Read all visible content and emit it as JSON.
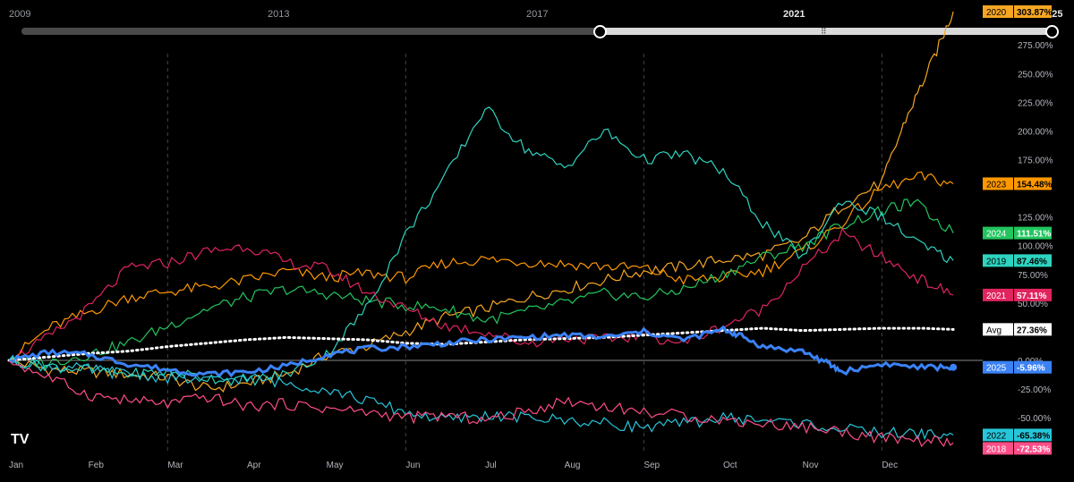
{
  "timeline": {
    "years": [
      "2009",
      "2013",
      "2017",
      "2021",
      "2025"
    ],
    "active_year": "2021",
    "range_start": "2021",
    "range_end": "2025",
    "grip_icon": "grip-dots"
  },
  "chart_data": {
    "type": "line",
    "x_unit": "month",
    "x_tick_labels": [
      "Jan",
      "Feb",
      "Mar",
      "Apr",
      "May",
      "Jun",
      "Jul",
      "Aug",
      "Sep",
      "Oct",
      "Nov",
      "Dec"
    ],
    "y_tick_labels": [
      "275.00%",
      "250.00%",
      "225.00%",
      "200.00%",
      "175.00%",
      "125.00%",
      "100.00%",
      "75.00%",
      "50.00%",
      "0.00%",
      "-25.00%",
      "-50.00%"
    ],
    "ylim": [
      -85,
      320
    ],
    "grid": "vertical quarter lines",
    "series": [
      {
        "name": "2020",
        "color": "#f5a623",
        "label": "303.87%",
        "x": [
          0,
          0.5,
          1,
          1.5,
          2,
          2.5,
          3,
          3.5,
          4,
          4.5,
          5,
          5.5,
          6,
          6.5,
          7,
          7.5,
          8,
          8.5,
          9,
          9.5,
          10,
          10.5,
          11,
          11.3,
          11.6,
          11.9
        ],
        "y": [
          0,
          -8,
          -10,
          -12,
          -15,
          -25,
          -20,
          -12,
          5,
          12,
          25,
          38,
          45,
          55,
          62,
          70,
          78,
          82,
          88,
          92,
          105,
          135,
          155,
          210,
          255,
          304
        ]
      },
      {
        "name": "2023",
        "color": "#ff9800",
        "label": "154.48%",
        "x": [
          0,
          0.5,
          1,
          1.5,
          2,
          2.5,
          3,
          3.5,
          4,
          4.5,
          5,
          5.5,
          6,
          6.5,
          7,
          7.5,
          8,
          8.5,
          9,
          9.5,
          10,
          10.5,
          11,
          11.5,
          11.9
        ],
        "y": [
          0,
          28,
          42,
          55,
          60,
          64,
          70,
          78,
          72,
          76,
          72,
          85,
          88,
          86,
          84,
          82,
          80,
          70,
          72,
          78,
          95,
          120,
          150,
          160,
          154
        ]
      },
      {
        "name": "2024",
        "color": "#22c55e",
        "label": "111.51%",
        "x": [
          0,
          0.5,
          1,
          1.5,
          2,
          2.5,
          3,
          3.5,
          4,
          4.5,
          5,
          5.5,
          6,
          6.5,
          7,
          7.5,
          8,
          8.5,
          9,
          9.5,
          10,
          10.5,
          11,
          11.4,
          11.9
        ],
        "y": [
          0,
          -2,
          5,
          15,
          30,
          45,
          55,
          62,
          58,
          52,
          48,
          45,
          35,
          42,
          50,
          58,
          55,
          62,
          75,
          90,
          100,
          118,
          130,
          138,
          111
        ]
      },
      {
        "name": "2019",
        "color": "#2dd4bf",
        "label": "87.46%",
        "x": [
          0,
          0.5,
          1,
          1.5,
          2,
          2.5,
          3,
          3.5,
          4,
          4.5,
          5,
          5.5,
          6,
          6.5,
          7,
          7.5,
          8,
          8.5,
          9,
          9.5,
          10,
          10.5,
          11,
          11.5,
          11.9
        ],
        "y": [
          0,
          -5,
          -8,
          -12,
          -10,
          -15,
          -18,
          -12,
          5,
          45,
          110,
          160,
          220,
          185,
          168,
          200,
          175,
          180,
          165,
          120,
          90,
          140,
          125,
          100,
          87
        ]
      },
      {
        "name": "2021",
        "color": "#e0245e",
        "label": "57.11%",
        "x": [
          0,
          0.5,
          1,
          1.5,
          2,
          2.5,
          3,
          3.5,
          4,
          4.5,
          5,
          5.5,
          6,
          6.5,
          7,
          7.5,
          8,
          8.5,
          9,
          9.5,
          10,
          10.5,
          11,
          11.5,
          11.9
        ],
        "y": [
          0,
          20,
          45,
          80,
          85,
          95,
          100,
          85,
          80,
          60,
          45,
          30,
          25,
          15,
          20,
          18,
          22,
          15,
          30,
          45,
          80,
          110,
          90,
          70,
          57
        ]
      },
      {
        "name": "Avg",
        "color": "#ffffff",
        "label": "27.36%",
        "dotted": true,
        "x": [
          0,
          0.5,
          1,
          1.5,
          2,
          2.5,
          3,
          3.5,
          4,
          4.5,
          5,
          5.5,
          6,
          6.5,
          7,
          7.5,
          8,
          8.5,
          9,
          9.5,
          10,
          10.5,
          11,
          11.5,
          11.9
        ],
        "y": [
          0,
          3,
          6,
          8,
          12,
          15,
          18,
          20,
          19,
          18,
          15,
          14,
          16,
          18,
          19,
          20,
          22,
          24,
          26,
          28,
          26,
          27,
          28,
          28,
          27
        ]
      },
      {
        "name": "2025",
        "color": "#3b82f6",
        "label": "-5.96%",
        "thick": true,
        "x": [
          0,
          0.5,
          1,
          1.5,
          2,
          2.5,
          3,
          3.5,
          4,
          4.5,
          5,
          5.5,
          6,
          6.5,
          7,
          7.5,
          8,
          8.5,
          9,
          9.2,
          9.5,
          10,
          10.3,
          10.5,
          11,
          11.5,
          11.9
        ],
        "y": [
          0,
          7,
          5,
          -3,
          -8,
          -12,
          -10,
          -5,
          5,
          10,
          12,
          15,
          18,
          20,
          22,
          20,
          25,
          18,
          27,
          22,
          12,
          8,
          -2,
          -10,
          -3,
          -6,
          -6
        ]
      },
      {
        "name": "2022",
        "color": "#26c6da",
        "label": "-65.38%",
        "x": [
          0,
          0.5,
          1,
          1.5,
          2,
          2.5,
          3,
          3.5,
          4,
          4.5,
          5,
          5.5,
          6,
          6.5,
          7,
          7.5,
          8,
          8.5,
          9,
          9.5,
          10,
          10.5,
          11,
          11.5,
          11.9
        ],
        "y": [
          0,
          -5,
          -8,
          -12,
          -15,
          -18,
          -15,
          -20,
          -25,
          -35,
          -45,
          -52,
          -48,
          -50,
          -52,
          -55,
          -58,
          -55,
          -50,
          -52,
          -55,
          -60,
          -63,
          -64,
          -65
        ]
      },
      {
        "name": "2018",
        "color": "#ff4d88",
        "label": "-72.53%",
        "x": [
          0,
          0.5,
          1,
          1.5,
          2,
          2.5,
          3,
          3.5,
          4,
          4.5,
          5,
          5.5,
          6,
          6.5,
          7,
          7.5,
          8,
          8.5,
          9,
          9.5,
          10,
          10.5,
          11,
          11.5,
          11.9
        ],
        "y": [
          0,
          -15,
          -30,
          -35,
          -38,
          -32,
          -40,
          -38,
          -42,
          -45,
          -50,
          -48,
          -52,
          -45,
          -35,
          -40,
          -45,
          -48,
          -52,
          -55,
          -58,
          -62,
          -68,
          -70,
          -72
        ]
      }
    ]
  }
}
